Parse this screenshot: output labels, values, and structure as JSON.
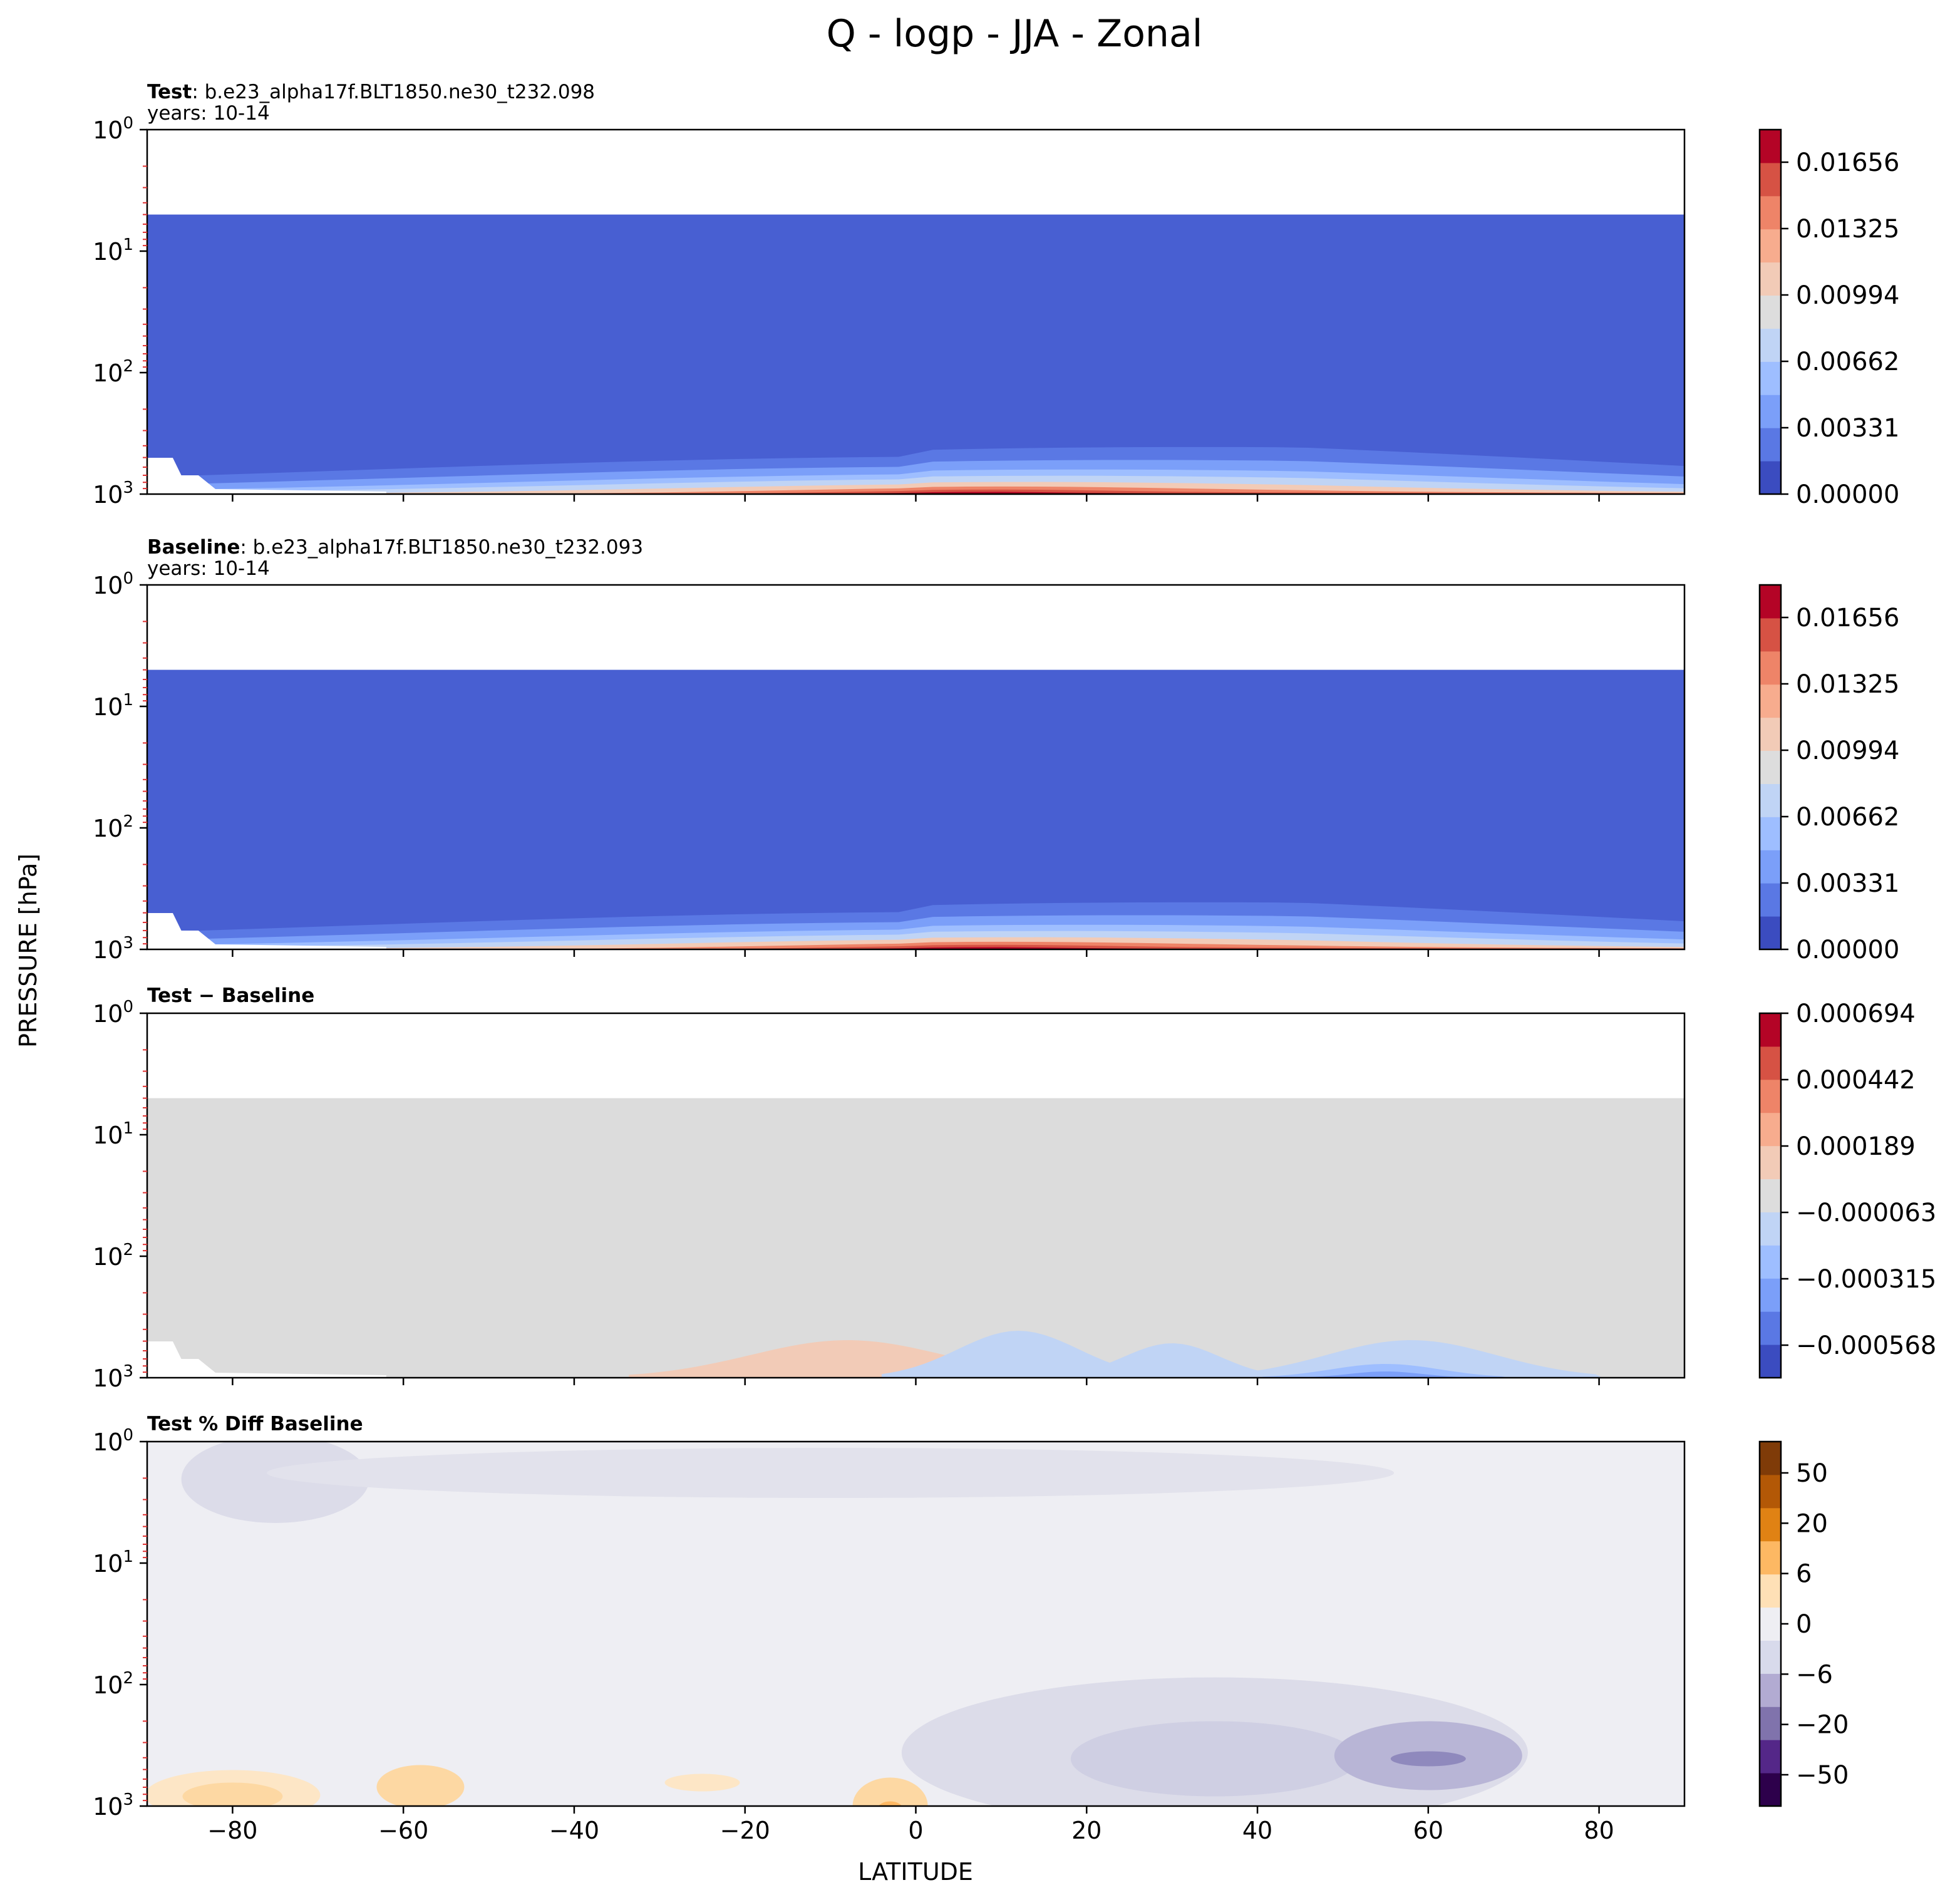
{
  "figure": {
    "suptitle": "Q - logp - JJA - Zonal",
    "ylabel": "PRESSURE [hPa]",
    "xlabel": "LATITUDE"
  },
  "chart_data": [
    {
      "type": "contour",
      "panel": "test",
      "title_bold": "Test",
      "title_rest": ": b.e23_alpha17f.BLT1850.ne30_t232.098",
      "subtitle": "years: 10-14",
      "xlim": [
        -90,
        90
      ],
      "ylim": [
        1000,
        1
      ],
      "yscale": "log",
      "y_ticks": [
        {
          "base": "10",
          "exp": "0"
        },
        {
          "base": "10",
          "exp": "1"
        },
        {
          "base": "10",
          "exp": "2"
        },
        {
          "base": "10",
          "exp": "3"
        }
      ],
      "colorbar_ticks": [
        "0.01656",
        "0.01325",
        "0.00994",
        "0.00662",
        "0.00331",
        "0.00000"
      ],
      "colormap": "coolwarm"
    },
    {
      "type": "contour",
      "panel": "baseline",
      "title_bold": "Baseline",
      "title_rest": ": b.e23_alpha17f.BLT1850.ne30_t232.093",
      "subtitle": "years: 10-14",
      "xlim": [
        -90,
        90
      ],
      "ylim": [
        1000,
        1
      ],
      "yscale": "log",
      "y_ticks": [
        {
          "base": "10",
          "exp": "0"
        },
        {
          "base": "10",
          "exp": "1"
        },
        {
          "base": "10",
          "exp": "2"
        },
        {
          "base": "10",
          "exp": "3"
        }
      ],
      "colorbar_ticks": [
        "0.01656",
        "0.01325",
        "0.00994",
        "0.00662",
        "0.00331",
        "0.00000"
      ],
      "colormap": "coolwarm"
    },
    {
      "type": "contour",
      "panel": "diff",
      "title_bold": "Test − Baseline",
      "title_rest": "",
      "subtitle": "",
      "xlim": [
        -90,
        90
      ],
      "ylim": [
        1000,
        1
      ],
      "yscale": "log",
      "y_ticks": [
        {
          "base": "10",
          "exp": "0"
        },
        {
          "base": "10",
          "exp": "1"
        },
        {
          "base": "10",
          "exp": "2"
        },
        {
          "base": "10",
          "exp": "3"
        }
      ],
      "colorbar_ticks": [
        "0.000694",
        "0.000442",
        "0.000189",
        "−0.000063",
        "−0.000315",
        "−0.000568"
      ],
      "colormap": "coolwarm"
    },
    {
      "type": "contour",
      "panel": "pctdiff",
      "title_bold": "Test % Diff Baseline",
      "title_rest": "",
      "subtitle": "",
      "xlim": [
        -90,
        90
      ],
      "ylim": [
        1000,
        1
      ],
      "yscale": "log",
      "y_ticks": [
        {
          "base": "10",
          "exp": "0"
        },
        {
          "base": "10",
          "exp": "1"
        },
        {
          "base": "10",
          "exp": "2"
        },
        {
          "base": "10",
          "exp": "3"
        }
      ],
      "x_ticks": [
        "−80",
        "−60",
        "−40",
        "−20",
        "0",
        "20",
        "40",
        "60",
        "80"
      ],
      "colorbar_ticks": [
        "50",
        "20",
        "6",
        "0",
        "−6",
        "−20",
        "−50"
      ],
      "colormap": "PuOr"
    }
  ]
}
